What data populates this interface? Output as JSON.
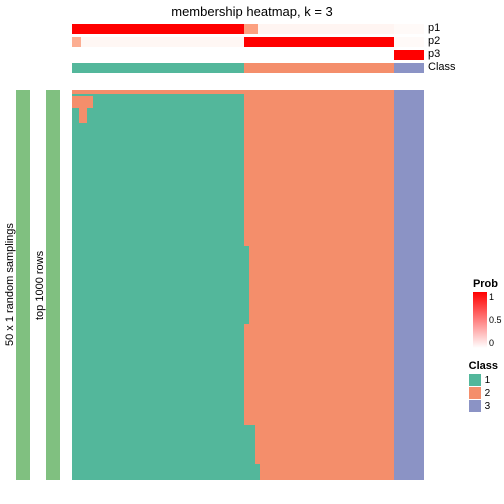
{
  "title": "membership heatmap, k = 3",
  "leftAnnotations": {
    "outer": {
      "label": "50 x 1 random samplings",
      "color": "#80c080"
    },
    "inner": {
      "label": "top 1000 rows",
      "color": "#80c080"
    }
  },
  "trackLabels": {
    "p1": "p1",
    "p2": "p2",
    "p3": "p3",
    "class": "Class"
  },
  "blocks": {
    "class1": {
      "widthPct": 48.9,
      "color": "#53b79b"
    },
    "class2": {
      "widthPct": 42.6,
      "color": "#f48e6b"
    },
    "class3": {
      "widthPct": 8.5,
      "color": "#8b93c5"
    }
  },
  "probColors": {
    "high": "#ff0000",
    "mid": "#fda385",
    "low": "#ffffff"
  },
  "tracks": {
    "p1": [
      {
        "wPct": 48.9,
        "color": "#ff0000"
      },
      {
        "wPct": 4.0,
        "color": "#fca080"
      },
      {
        "wPct": 38.6,
        "color": "#fff5f2"
      },
      {
        "wPct": 8.5,
        "color": "#fffaf8"
      }
    ],
    "p2": [
      {
        "wPct": 2.5,
        "color": "#fcae92"
      },
      {
        "wPct": 46.4,
        "color": "#fff7f4"
      },
      {
        "wPct": 42.6,
        "color": "#ff0000"
      },
      {
        "wPct": 8.5,
        "color": "#fffaf8"
      }
    ],
    "p3": [
      {
        "wPct": 91.5,
        "color": "#ffffff"
      },
      {
        "wPct": 8.5,
        "color": "#ff0000"
      }
    ],
    "classBar": [
      {
        "wPct": 48.9,
        "color": "#53b79b"
      },
      {
        "wPct": 42.6,
        "color": "#f48e6b"
      },
      {
        "wPct": 8.5,
        "color": "#8b93c5"
      }
    ]
  },
  "mainNoise": [
    {
      "leftPct": 0,
      "topPct": 0,
      "wPct": 48.9,
      "hPct": 1.0,
      "color": "#f48e6b"
    },
    {
      "leftPct": 0,
      "topPct": 1.5,
      "wPct": 6.0,
      "hPct": 3.0,
      "color": "#f48e6b"
    },
    {
      "leftPct": 2.0,
      "topPct": 4.5,
      "wPct": 2.2,
      "hPct": 4.0,
      "color": "#f48e6b"
    },
    {
      "leftPct": 48.9,
      "topPct": 40,
      "wPct": 1.4,
      "hPct": 20,
      "color": "#53b79b"
    },
    {
      "leftPct": 48.9,
      "topPct": 86,
      "wPct": 3.0,
      "hPct": 10,
      "color": "#53b79b"
    },
    {
      "leftPct": 48.9,
      "topPct": 96,
      "wPct": 4.5,
      "hPct": 4,
      "color": "#53b79b"
    }
  ],
  "legends": {
    "prob": {
      "title": "Prob",
      "ticks": [
        "1",
        "0.5",
        "0"
      ],
      "colorHigh": "#ff0000",
      "colorLow": "#ffffff"
    },
    "class": {
      "title": "Class",
      "items": [
        {
          "label": "1",
          "color": "#53b79b"
        },
        {
          "label": "2",
          "color": "#f48e6b"
        },
        {
          "label": "3",
          "color": "#8b93c5"
        }
      ]
    }
  },
  "layout": {
    "trackHeights": {
      "p": 10,
      "classBar": 10,
      "gap": 3
    },
    "legendProbTop": 278,
    "legendClassTop": 360
  }
}
